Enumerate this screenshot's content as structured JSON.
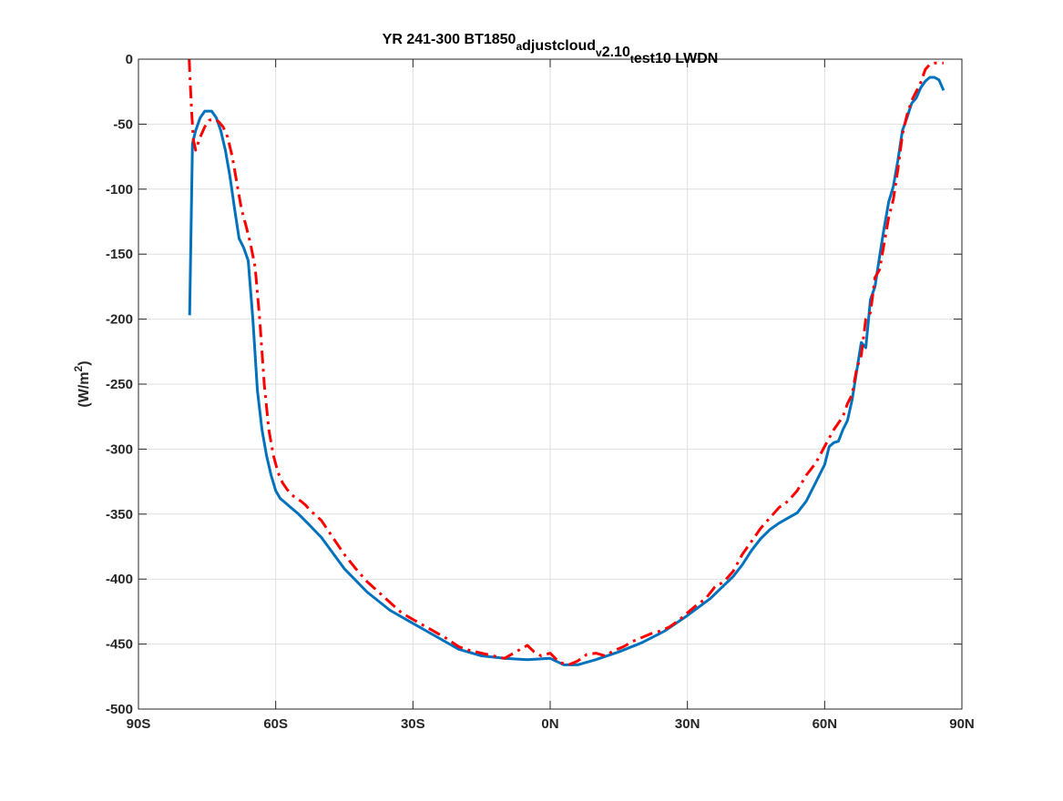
{
  "chart_data": {
    "type": "line",
    "title_parts": [
      {
        "text": "YR 241-300 BT1850",
        "sub": false
      },
      {
        "text": "a",
        "sub": true
      },
      {
        "text": "djustcloud",
        "sub": false
      },
      {
        "text": "v",
        "sub": true
      },
      {
        "text": "2.10",
        "sub": false
      },
      {
        "text": "t",
        "sub": true
      },
      {
        "text": "est10 LWDN",
        "sub": false
      }
    ],
    "ylabel": {
      "base": "(W/m",
      "sup": "2",
      "close": ")"
    },
    "xlim": [
      -90,
      90
    ],
    "ylim": [
      -500,
      0
    ],
    "xticks": [
      -90,
      -60,
      -30,
      0,
      30,
      60,
      90
    ],
    "xtick_labels": [
      "90S",
      "60S",
      "30S",
      "0N",
      "30N",
      "60N",
      "90N"
    ],
    "yticks": [
      0,
      -50,
      -100,
      -150,
      -200,
      -250,
      -300,
      -350,
      -400,
      -450,
      -500
    ],
    "ytick_labels": [
      "0",
      "-50",
      "-100",
      "-150",
      "-200",
      "-250",
      "-300",
      "-350",
      "-400",
      "-450",
      "-500"
    ],
    "grid": true,
    "series": [
      {
        "style": "solid",
        "color": "#0072BD",
        "x": [
          -78.8,
          -78.2,
          -77.5,
          -76.5,
          -75.5,
          -74,
          -73,
          -72,
          -71,
          -70,
          -69,
          -68,
          -67,
          -66,
          -65,
          -64,
          -63,
          -62,
          -61,
          -60,
          -59,
          -58,
          -57,
          -56,
          -55,
          -53,
          -50,
          -45,
          -40,
          -35,
          -30,
          -25,
          -20,
          -15,
          -10,
          -5,
          0,
          3,
          6,
          10,
          15,
          20,
          25,
          30,
          35,
          40,
          42,
          44,
          46,
          48,
          50,
          52,
          54,
          56,
          58,
          60,
          61,
          62,
          63,
          64,
          65,
          66,
          67,
          68,
          69,
          70,
          71,
          72,
          73,
          74,
          75,
          76,
          77,
          78,
          79,
          80,
          81,
          82,
          83,
          84,
          85,
          86
        ],
        "y": [
          -197,
          -65,
          -55,
          -45,
          -40,
          -40,
          -45,
          -55,
          -70,
          -90,
          -115,
          -138,
          -145,
          -155,
          -200,
          -255,
          -285,
          -305,
          -320,
          -332,
          -338,
          -341,
          -344,
          -347,
          -350,
          -357,
          -368,
          -392,
          -410,
          -424,
          -434,
          -444,
          -454,
          -459,
          -461,
          -462,
          -461,
          -466,
          -466,
          -462,
          -456,
          -449,
          -440,
          -428,
          -415,
          -398,
          -389,
          -378,
          -369,
          -362,
          -357,
          -353,
          -349,
          -340,
          -326,
          -312,
          -298,
          -295,
          -294,
          -285,
          -278,
          -262,
          -240,
          -218,
          -222,
          -185,
          -175,
          -152,
          -130,
          -110,
          -98,
          -78,
          -55,
          -45,
          -34,
          -30,
          -22,
          -17,
          -14,
          -14,
          -16,
          -24
        ]
      },
      {
        "style": "dashdot",
        "color": "#FF0000",
        "x": [
          -78.9,
          -78.6,
          -78.3,
          -78,
          -77.5,
          -76.5,
          -75.5,
          -74.5,
          -73.5,
          -72.5,
          -71.5,
          -70.5,
          -69.5,
          -68.5,
          -67.5,
          -66.5,
          -65.5,
          -64.5,
          -63.5,
          -62.5,
          -61.5,
          -60.5,
          -59.5,
          -58.5,
          -57.5,
          -56.5,
          -55.5,
          -54.5,
          -53.5,
          -52.5,
          -50,
          -47.5,
          -45,
          -42.5,
          -40,
          -37.5,
          -35,
          -32.5,
          -30,
          -27.5,
          -25,
          -22.5,
          -20,
          -17.5,
          -15,
          -12.5,
          -10,
          -7.5,
          -5,
          -3.5,
          -2,
          0,
          2,
          4,
          6,
          8,
          10,
          12,
          14,
          16,
          18,
          20,
          22,
          24,
          26,
          28,
          30,
          32,
          34,
          36,
          38,
          40,
          42,
          44,
          46,
          48,
          50,
          52,
          54,
          56,
          58,
          60,
          62,
          64,
          65,
          66,
          67,
          68,
          69,
          70,
          71,
          72,
          73,
          74,
          75,
          76,
          77,
          78,
          79,
          80,
          81,
          82,
          83,
          84,
          85,
          86
        ],
        "y": [
          0,
          -25,
          -45,
          -62,
          -70,
          -60,
          -52,
          -47,
          -46,
          -48,
          -52,
          -60,
          -75,
          -95,
          -115,
          -128,
          -142,
          -160,
          -200,
          -250,
          -285,
          -305,
          -318,
          -326,
          -331,
          -335,
          -338,
          -340,
          -343,
          -347,
          -355,
          -368,
          -381,
          -392,
          -402,
          -410,
          -418,
          -426,
          -431,
          -436,
          -441,
          -446,
          -452,
          -455,
          -457,
          -459,
          -461,
          -456,
          -451,
          -456,
          -459,
          -457,
          -464,
          -466,
          -463,
          -458,
          -457,
          -459,
          -455,
          -452,
          -448,
          -445,
          -442,
          -440,
          -437,
          -432,
          -426,
          -420,
          -415,
          -406,
          -402,
          -394,
          -381,
          -371,
          -361,
          -353,
          -345,
          -340,
          -332,
          -320,
          -311,
          -298,
          -285,
          -275,
          -265,
          -258,
          -238,
          -228,
          -200,
          -195,
          -168,
          -162,
          -142,
          -122,
          -108,
          -85,
          -58,
          -43,
          -32,
          -25,
          -18,
          -8,
          -4,
          -3,
          -3,
          -3
        ]
      }
    ]
  }
}
